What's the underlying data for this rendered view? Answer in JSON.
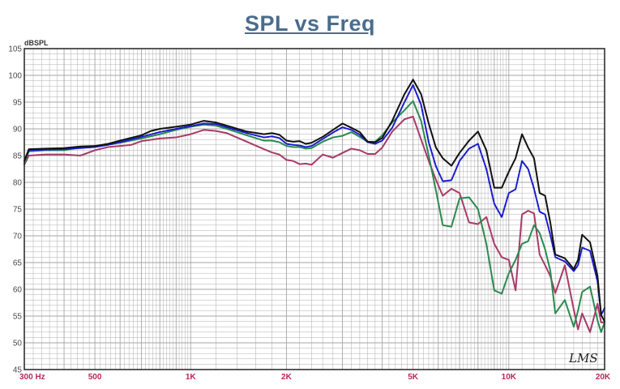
{
  "chart_data": {
    "type": "line",
    "title": "SPL vs Freq",
    "ylabel": "dBSPL",
    "xlabel": "",
    "xscale": "log",
    "xlim": [
      300,
      20000
    ],
    "ylim": [
      45,
      105
    ],
    "grid": true,
    "watermark": "LMS",
    "y_ticks": [
      "45",
      "50",
      "55",
      "60",
      "65",
      "70",
      "75",
      "80",
      "85",
      "90",
      "95",
      "100",
      "105"
    ],
    "x_tick_labels": [
      {
        "value": 300,
        "label": "300  Hz"
      },
      {
        "value": 500,
        "label": "500"
      },
      {
        "value": 1000,
        "label": "1K"
      },
      {
        "value": 2000,
        "label": "2K"
      },
      {
        "value": 5000,
        "label": "5K"
      },
      {
        "value": 10000,
        "label": "10K"
      },
      {
        "value": 20000,
        "label": "20K"
      }
    ],
    "colors": {
      "black": "#111111",
      "blue": "#1a1acc",
      "green": "#2a8a50",
      "maroon": "#a83a68",
      "title": "#4a6d8c",
      "tick_labels_x": "#c0245a",
      "grid": "#a6a6a6"
    },
    "series": [
      {
        "color": "black",
        "dashed": false,
        "points": [
          [
            300,
            84
          ],
          [
            310,
            86.2
          ],
          [
            350,
            86.3
          ],
          [
            400,
            86.4
          ],
          [
            450,
            86.7
          ],
          [
            500,
            86.8
          ],
          [
            550,
            87.2
          ],
          [
            600,
            87.8
          ],
          [
            700,
            88.8
          ],
          [
            750,
            89.6
          ],
          [
            800,
            90
          ],
          [
            900,
            90.4
          ],
          [
            1000,
            90.8
          ],
          [
            1100,
            91.5
          ],
          [
            1200,
            91.2
          ],
          [
            1300,
            90.6
          ],
          [
            1500,
            89.5
          ],
          [
            1700,
            89
          ],
          [
            1800,
            89.2
          ],
          [
            1900,
            88.9
          ],
          [
            2000,
            87.8
          ],
          [
            2100,
            87.6
          ],
          [
            2200,
            87.7
          ],
          [
            2300,
            87.2
          ],
          [
            2400,
            87.4
          ],
          [
            2600,
            88.5
          ],
          [
            2800,
            89.8
          ],
          [
            3000,
            91
          ],
          [
            3200,
            90.2
          ],
          [
            3400,
            89.4
          ],
          [
            3600,
            87.6
          ],
          [
            3800,
            87.5
          ],
          [
            4000,
            88.3
          ],
          [
            4300,
            91.5
          ],
          [
            4700,
            96.5
          ],
          [
            5000,
            99.2
          ],
          [
            5300,
            96.5
          ],
          [
            5600,
            91
          ],
          [
            5900,
            86.5
          ],
          [
            6200,
            84.5
          ],
          [
            6600,
            83.1
          ],
          [
            7000,
            85.5
          ],
          [
            7500,
            87.8
          ],
          [
            8000,
            89.5
          ],
          [
            8500,
            86
          ],
          [
            9000,
            79
          ],
          [
            9500,
            79
          ],
          [
            10000,
            82
          ],
          [
            10500,
            84.5
          ],
          [
            11000,
            89
          ],
          [
            11500,
            86.5
          ],
          [
            12000,
            84.5
          ],
          [
            12500,
            78
          ],
          [
            13000,
            77.5
          ],
          [
            13500,
            72.5
          ],
          [
            14000,
            66.5
          ],
          [
            15000,
            65.8
          ],
          [
            16000,
            63.8
          ],
          [
            16500,
            65.5
          ],
          [
            17000,
            70.2
          ],
          [
            18000,
            68.8
          ],
          [
            19000,
            62.5
          ],
          [
            19500,
            55.2
          ],
          [
            20000,
            54
          ]
        ]
      },
      {
        "color": "blue",
        "dashed": true,
        "points": [
          [
            300,
            84
          ],
          [
            310,
            86
          ],
          [
            350,
            86.1
          ],
          [
            400,
            86.2
          ],
          [
            450,
            86.4
          ],
          [
            500,
            86.6
          ],
          [
            550,
            87
          ],
          [
            600,
            87.5
          ],
          [
            700,
            88.5
          ],
          [
            800,
            89.4
          ],
          [
            900,
            90
          ],
          [
            1000,
            90.5
          ],
          [
            1100,
            91
          ],
          [
            1200,
            90.9
          ],
          [
            1300,
            90.3
          ],
          [
            1500,
            89.2
          ],
          [
            1700,
            88.4
          ],
          [
            1800,
            88.6
          ],
          [
            1900,
            88.3
          ],
          [
            2000,
            87.2
          ],
          [
            2100,
            87
          ],
          [
            2200,
            86.9
          ],
          [
            2300,
            86.6
          ],
          [
            2400,
            86.8
          ],
          [
            2600,
            88.1
          ],
          [
            2800,
            89.3
          ],
          [
            3000,
            90.3
          ],
          [
            3200,
            89.8
          ],
          [
            3400,
            88.9
          ],
          [
            3600,
            87.5
          ],
          [
            3800,
            87.2
          ],
          [
            4000,
            87.8
          ],
          [
            4300,
            90.2
          ],
          [
            4700,
            95
          ],
          [
            5000,
            98.2
          ],
          [
            5300,
            94.5
          ],
          [
            5600,
            87.5
          ],
          [
            5900,
            83
          ],
          [
            6200,
            80.2
          ],
          [
            6600,
            80.4
          ],
          [
            7000,
            84
          ],
          [
            7500,
            86.3
          ],
          [
            8000,
            87.2
          ],
          [
            8500,
            82.5
          ],
          [
            9000,
            76
          ],
          [
            9500,
            73.5
          ],
          [
            10000,
            78
          ],
          [
            10500,
            78.7
          ],
          [
            11000,
            84
          ],
          [
            11500,
            82.5
          ],
          [
            12000,
            78.8
          ],
          [
            12500,
            74.5
          ],
          [
            13000,
            74
          ],
          [
            13500,
            70.2
          ],
          [
            14000,
            66
          ],
          [
            15000,
            65.2
          ],
          [
            16000,
            63.4
          ],
          [
            16500,
            64.5
          ],
          [
            17000,
            67.8
          ],
          [
            18000,
            67.2
          ],
          [
            19000,
            61.5
          ],
          [
            19500,
            55.2
          ],
          [
            20000,
            56.5
          ]
        ]
      },
      {
        "color": "green",
        "dashed": false,
        "points": [
          [
            300,
            83.5
          ],
          [
            310,
            85.8
          ],
          [
            350,
            86
          ],
          [
            400,
            86
          ],
          [
            450,
            86.5
          ],
          [
            500,
            86.8
          ],
          [
            550,
            87.1
          ],
          [
            600,
            87.4
          ],
          [
            700,
            88.2
          ],
          [
            800,
            89
          ],
          [
            900,
            89.8
          ],
          [
            1000,
            90.4
          ],
          [
            1100,
            90.8
          ],
          [
            1200,
            90.6
          ],
          [
            1300,
            90
          ],
          [
            1500,
            88.8
          ],
          [
            1700,
            87.8
          ],
          [
            1800,
            87.8
          ],
          [
            1900,
            87.5
          ],
          [
            2000,
            86.8
          ],
          [
            2100,
            86.6
          ],
          [
            2200,
            86.6
          ],
          [
            2300,
            86.3
          ],
          [
            2400,
            86.4
          ],
          [
            2600,
            87.6
          ],
          [
            2800,
            88.4
          ],
          [
            3000,
            88.7
          ],
          [
            3200,
            89.4
          ],
          [
            3400,
            88.5
          ],
          [
            3600,
            87.6
          ],
          [
            3800,
            87.6
          ],
          [
            4000,
            88.8
          ],
          [
            4300,
            91.2
          ],
          [
            4700,
            93.5
          ],
          [
            5000,
            95.2
          ],
          [
            5300,
            91.5
          ],
          [
            5600,
            85
          ],
          [
            5900,
            78.5
          ],
          [
            6200,
            72
          ],
          [
            6600,
            71.7
          ],
          [
            7000,
            77
          ],
          [
            7500,
            77.2
          ],
          [
            8000,
            75
          ],
          [
            8500,
            68.5
          ],
          [
            9000,
            59.8
          ],
          [
            9500,
            59.2
          ],
          [
            10000,
            63
          ],
          [
            10500,
            65.5
          ],
          [
            11000,
            68.5
          ],
          [
            11500,
            69
          ],
          [
            12000,
            72
          ],
          [
            12500,
            70.5
          ],
          [
            13000,
            67.5
          ],
          [
            13500,
            63.5
          ],
          [
            14000,
            55.5
          ],
          [
            15000,
            58
          ],
          [
            16000,
            53
          ],
          [
            16500,
            56
          ],
          [
            17000,
            59.5
          ],
          [
            18000,
            60.5
          ],
          [
            19000,
            54.2
          ],
          [
            19500,
            52
          ],
          [
            20000,
            53.8
          ]
        ]
      },
      {
        "color": "maroon",
        "dashed": false,
        "points": [
          [
            300,
            83.3
          ],
          [
            310,
            85
          ],
          [
            350,
            85.2
          ],
          [
            400,
            85.2
          ],
          [
            450,
            85
          ],
          [
            500,
            86
          ],
          [
            550,
            86.6
          ],
          [
            600,
            86.8
          ],
          [
            650,
            87
          ],
          [
            700,
            87.7
          ],
          [
            800,
            88.2
          ],
          [
            900,
            88.4
          ],
          [
            1000,
            89
          ],
          [
            1100,
            89.8
          ],
          [
            1200,
            89.6
          ],
          [
            1300,
            89.2
          ],
          [
            1500,
            87.6
          ],
          [
            1700,
            86.2
          ],
          [
            1800,
            85.6
          ],
          [
            1900,
            85.2
          ],
          [
            2000,
            84.2
          ],
          [
            2100,
            84
          ],
          [
            2200,
            83.4
          ],
          [
            2300,
            83.5
          ],
          [
            2400,
            83.3
          ],
          [
            2600,
            85.2
          ],
          [
            2800,
            84.6
          ],
          [
            3000,
            85.5
          ],
          [
            3200,
            86.3
          ],
          [
            3400,
            86
          ],
          [
            3600,
            85.3
          ],
          [
            3800,
            85.3
          ],
          [
            4000,
            86.5
          ],
          [
            4300,
            89.5
          ],
          [
            4700,
            91.8
          ],
          [
            5000,
            92.3
          ],
          [
            5300,
            88
          ],
          [
            5600,
            84
          ],
          [
            5900,
            80.5
          ],
          [
            6200,
            77.5
          ],
          [
            6600,
            78.8
          ],
          [
            7000,
            78
          ],
          [
            7500,
            72.5
          ],
          [
            8000,
            72.2
          ],
          [
            8500,
            73.5
          ],
          [
            9000,
            68.5
          ],
          [
            9500,
            66
          ],
          [
            10000,
            65.5
          ],
          [
            10500,
            59.8
          ],
          [
            11000,
            74
          ],
          [
            11500,
            74.7
          ],
          [
            12000,
            74.2
          ],
          [
            12500,
            66.5
          ],
          [
            13000,
            64.5
          ],
          [
            13500,
            62.5
          ],
          [
            14000,
            59.3
          ],
          [
            15000,
            64.5
          ],
          [
            16000,
            56.2
          ],
          [
            16500,
            52.5
          ],
          [
            17000,
            55.5
          ],
          [
            18000,
            52
          ],
          [
            19000,
            57.3
          ],
          [
            19500,
            53.8
          ],
          [
            20000,
            53.8
          ]
        ]
      }
    ]
  }
}
